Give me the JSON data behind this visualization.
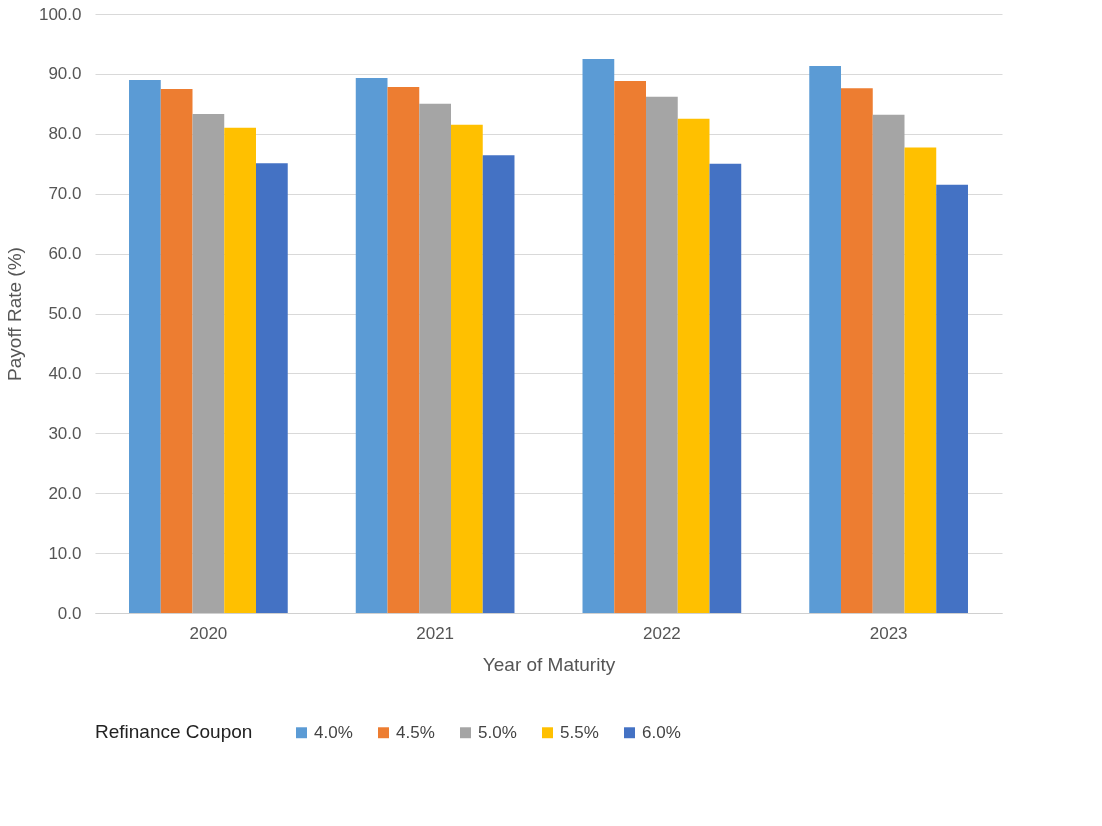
{
  "chart_data": {
    "type": "bar",
    "xlabel": "Year of Maturity",
    "ylabel": "Payoff Rate (%)",
    "legend_title": "Refinance Coupon",
    "categories": [
      "2020",
      "2021",
      "2022",
      "2023"
    ],
    "series": [
      {
        "name": "4.0%",
        "color": "#5b9bd5",
        "values": [
          89.0,
          89.3,
          92.5,
          91.3
        ]
      },
      {
        "name": "4.5%",
        "color": "#ed7d31",
        "values": [
          87.5,
          87.8,
          88.8,
          87.6
        ]
      },
      {
        "name": "5.0%",
        "color": "#a5a5a5",
        "values": [
          83.3,
          85.0,
          86.2,
          83.2
        ]
      },
      {
        "name": "5.5%",
        "color": "#ffc000",
        "values": [
          81.0,
          81.5,
          82.5,
          77.7
        ]
      },
      {
        "name": "6.0%",
        "color": "#4472c4",
        "values": [
          75.1,
          76.4,
          75.0,
          71.5
        ]
      }
    ],
    "ylim": [
      0,
      100
    ],
    "yticks": [
      {
        "value": 0,
        "label": "0.0"
      },
      {
        "value": 10,
        "label": "10.0"
      },
      {
        "value": 20,
        "label": "20.0"
      },
      {
        "value": 30,
        "label": "30.0"
      },
      {
        "value": 40,
        "label": "40.0"
      },
      {
        "value": 50,
        "label": "50.0"
      },
      {
        "value": 60,
        "label": "60.0"
      },
      {
        "value": 70,
        "label": "70.0"
      },
      {
        "value": 80,
        "label": "80.0"
      },
      {
        "value": 90,
        "label": "90.0"
      },
      {
        "value": 100,
        "label": "100.0"
      }
    ],
    "grid": "y",
    "legend": "bottom"
  }
}
